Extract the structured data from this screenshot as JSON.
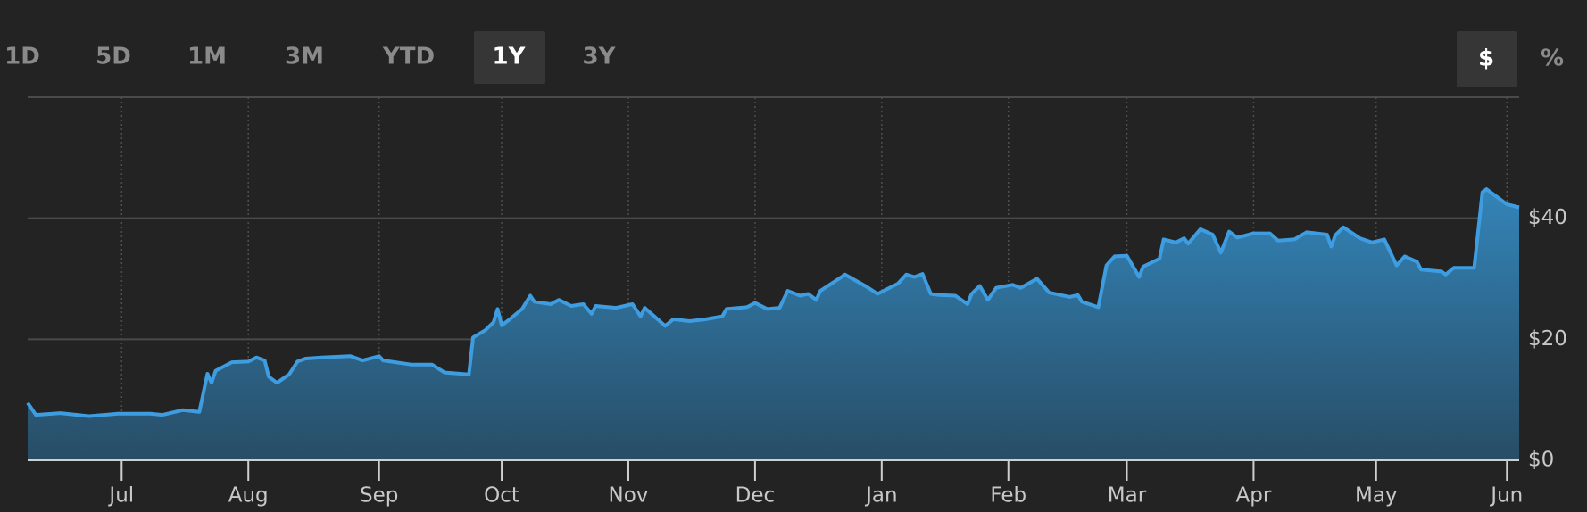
{
  "range_buttons": [
    "1D",
    "5D",
    "1M",
    "3M",
    "YTD",
    "1Y",
    "3Y"
  ],
  "unit_buttons": [
    "$",
    "%"
  ],
  "chart_data": {
    "type": "area",
    "x": [
      0,
      2,
      8,
      15,
      22,
      30,
      33,
      38,
      42,
      44,
      45,
      46,
      50,
      54,
      56,
      58,
      59,
      61,
      64,
      66,
      68,
      72,
      79,
      82,
      86,
      87,
      94,
      99,
      102,
      108,
      109,
      112,
      114,
      115,
      116,
      118,
      121,
      123,
      124,
      128,
      130,
      133,
      136,
      138,
      139,
      144,
      148,
      150,
      151,
      156,
      158,
      162,
      166,
      170,
      171,
      176,
      178,
      181,
      184,
      186,
      189,
      191,
      193,
      194,
      199,
      200,
      205,
      208,
      213,
      215,
      217,
      219,
      221,
      223,
      227,
      230,
      231,
      233,
      235,
      237,
      241,
      243,
      247,
      250,
      255,
      257,
      258,
      262,
      264,
      266,
      269,
      272,
      273,
      277,
      278,
      281,
      283,
      284,
      287,
      290,
      292,
      294,
      296,
      300,
      304,
      306,
      310,
      313,
      318,
      319,
      320,
      322,
      326,
      329,
      332,
      335,
      337,
      340,
      341,
      346,
      347,
      349,
      354,
      356,
      357,
      362,
      365
    ],
    "series": [
      {
        "color": "#3d9de0",
        "values": [
          9.5,
          7.5,
          7.8,
          7.3,
          7.7,
          7.7,
          7.5,
          8.3,
          8,
          14.3,
          12.8,
          14.8,
          16.2,
          16.3,
          17,
          16.5,
          13.8,
          12.8,
          14.2,
          16.3,
          16.8,
          17,
          17.2,
          16.5,
          17.2,
          16.5,
          15.8,
          15.8,
          14.5,
          14.2,
          20.3,
          21.5,
          22.8,
          25,
          22.3,
          23.3,
          25,
          27.2,
          26.2,
          25.8,
          26.5,
          25.5,
          25.8,
          24.2,
          25.5,
          25.2,
          25.8,
          23.8,
          25.2,
          22.2,
          23.3,
          23,
          23.3,
          23.8,
          25,
          25.3,
          26,
          25,
          25.2,
          28,
          27.2,
          27.5,
          26.5,
          28,
          30.2,
          30.7,
          28.8,
          27.5,
          29.2,
          30.7,
          30.3,
          30.8,
          27.5,
          27.3,
          27.2,
          25.8,
          27.5,
          28.8,
          26.5,
          28.5,
          29,
          28.5,
          30,
          27.7,
          27,
          27.3,
          26.2,
          25.3,
          32.2,
          33.7,
          33.8,
          30.3,
          32,
          33.3,
          36.5,
          36,
          36.7,
          35.8,
          38.2,
          37.3,
          34.3,
          37.8,
          36.8,
          37.5,
          37.5,
          36.3,
          36.5,
          37.7,
          37.3,
          35.3,
          37.2,
          38.5,
          36.7,
          36,
          36.5,
          32.2,
          33.7,
          32.8,
          31.5,
          31.2,
          30.7,
          31.8,
          31.8,
          44.3,
          44.8,
          42.3,
          41.8
        ]
      }
    ],
    "xlim": [
      0,
      365
    ],
    "xticks": [
      {
        "value": 23,
        "label": "Jul"
      },
      {
        "value": 54,
        "label": "Aug"
      },
      {
        "value": 86,
        "label": "Sep"
      },
      {
        "value": 116,
        "label": "Oct"
      },
      {
        "value": 147,
        "label": "Nov"
      },
      {
        "value": 178,
        "label": "Dec"
      },
      {
        "value": 209,
        "label": "Jan"
      },
      {
        "value": 240,
        "label": "Feb"
      },
      {
        "value": 269,
        "label": "Mar"
      },
      {
        "value": 300,
        "label": "Apr"
      },
      {
        "value": 330,
        "label": "May"
      },
      {
        "value": 362,
        "label": "Jun"
      }
    ],
    "ylim": [
      0,
      60
    ],
    "yticks": [
      {
        "value": 0,
        "label": "$0"
      },
      {
        "value": 20,
        "label": "$20"
      },
      {
        "value": 40,
        "label": "$40"
      }
    ],
    "grid": true
  }
}
